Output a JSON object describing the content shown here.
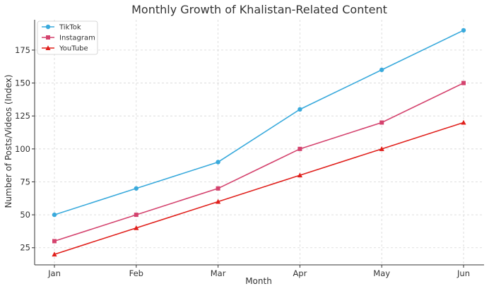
{
  "chart_data": {
    "type": "line",
    "title": "Monthly Growth of Khalistan-Related Content",
    "xlabel": "Month",
    "ylabel": "Number of Posts/Videos (Index)",
    "categories": [
      "Jan",
      "Feb",
      "Mar",
      "Apr",
      "May",
      "Jun"
    ],
    "yticks": [
      25,
      50,
      75,
      100,
      125,
      150,
      175
    ],
    "ylim": [
      12,
      198
    ],
    "grid": true,
    "legend_position": "top-left",
    "series": [
      {
        "name": "TikTok",
        "values": [
          50,
          70,
          90,
          130,
          160,
          190
        ],
        "color": "#3aaadc",
        "marker": "circle"
      },
      {
        "name": "Instagram",
        "values": [
          30,
          50,
          70,
          100,
          120,
          150
        ],
        "color": "#d4436e",
        "marker": "square"
      },
      {
        "name": "YouTube",
        "values": [
          20,
          40,
          60,
          80,
          100,
          120
        ],
        "color": "#e0201c",
        "marker": "triangle"
      }
    ]
  }
}
